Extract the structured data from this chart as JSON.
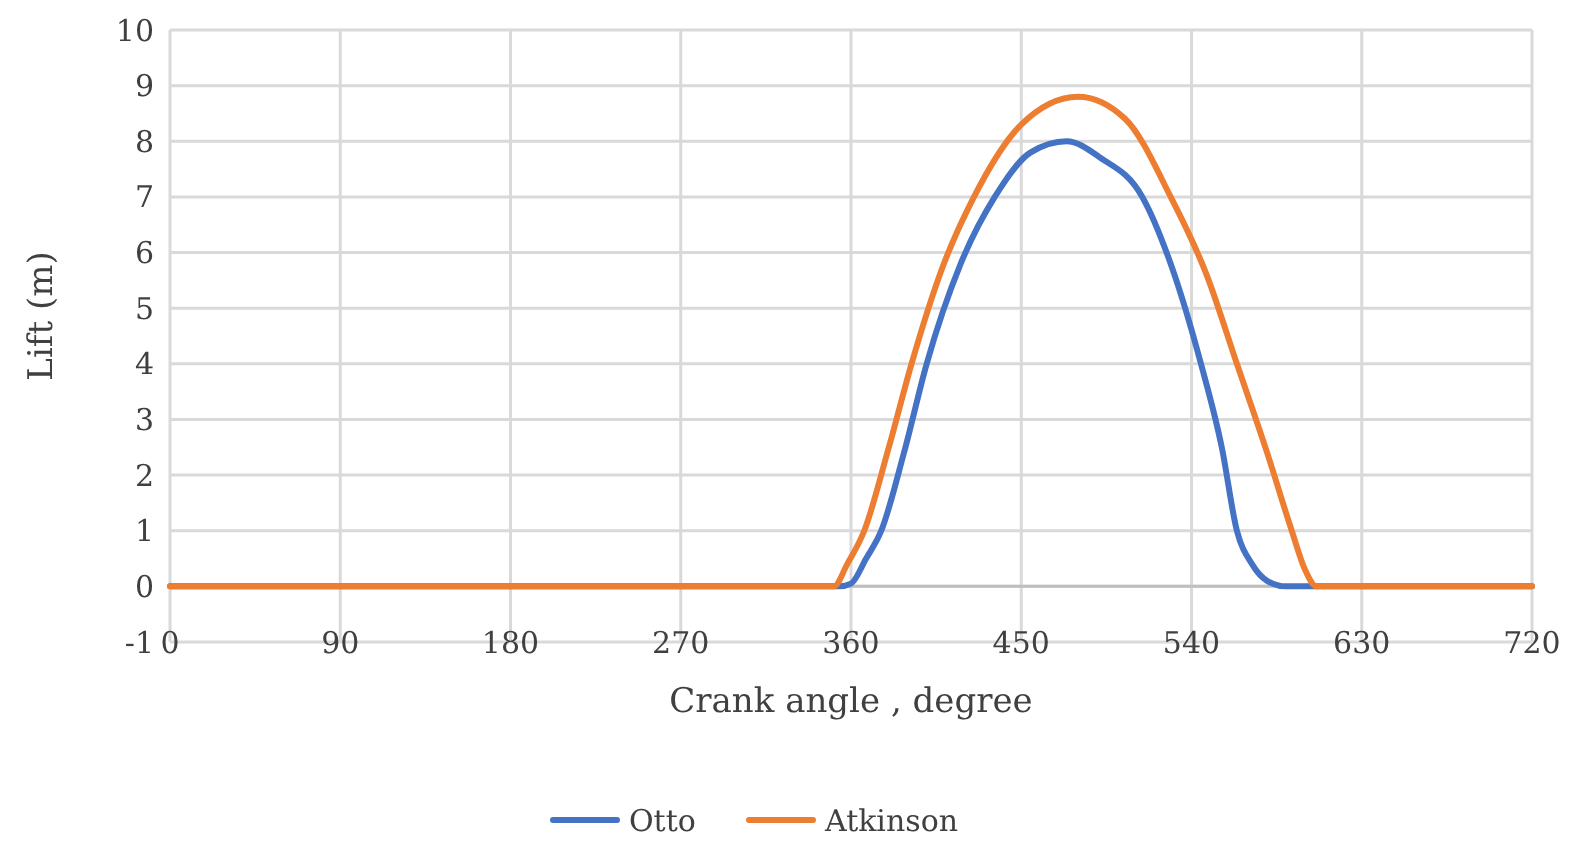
{
  "chart_data": {
    "type": "line",
    "xlabel": "Crank angle , degree",
    "ylabel": "Lift (m)",
    "xlim": [
      0,
      720
    ],
    "xticks": [
      0,
      90,
      180,
      270,
      360,
      450,
      540,
      630,
      720
    ],
    "ylim": [
      -1,
      10
    ],
    "yticks": [
      -1,
      0,
      1,
      2,
      3,
      4,
      5,
      6,
      7,
      8,
      9,
      10
    ],
    "grid": true,
    "legend": "bottom",
    "marker": "none",
    "line_style": "solid",
    "series": [
      {
        "name": "Otto",
        "color": "#4472c4",
        "x": [
          0,
          354,
          360,
          368,
          376,
          388,
          400,
          418,
          436,
          455,
          474,
          492,
          514,
          530,
          545,
          556,
          564,
          572,
          580,
          590,
          720
        ],
        "values": [
          0,
          0,
          0.05,
          0.5,
          1,
          2.4,
          4,
          5.8,
          7,
          7.8,
          8,
          7.7,
          7,
          5.7,
          4,
          2.5,
          1,
          0.4,
          0.1,
          0,
          0
        ]
      },
      {
        "name": "Atkinson",
        "color": "#ed7d31",
        "x": [
          0,
          351,
          358,
          367,
          380,
          392,
          408,
          425,
          450,
          480,
          505,
          529,
          548,
          564,
          580,
          593,
          600,
          606,
          720
        ],
        "values": [
          0,
          0,
          0.4,
          1,
          2.5,
          4,
          5.7,
          7,
          8.3,
          8.8,
          8.4,
          7,
          5.6,
          4,
          2.4,
          1,
          0.3,
          0,
          0
        ]
      }
    ]
  }
}
